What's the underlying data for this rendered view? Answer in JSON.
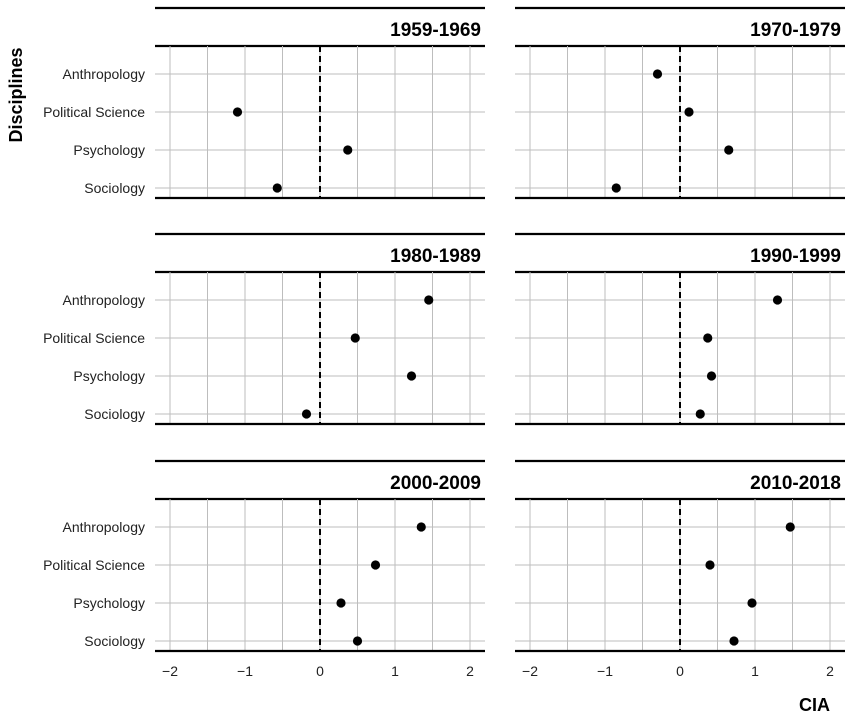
{
  "chart_data": {
    "type": "scatter",
    "xlabel": "CIA",
    "ylabel": "Disciplines",
    "xlim": [
      -2.2,
      2.2
    ],
    "x_ticks": [
      -2,
      -1,
      0,
      1,
      2
    ],
    "x_tick_labels": [
      "−2",
      "−1",
      "0",
      "1",
      "2"
    ],
    "reference_line": 0,
    "grid": true,
    "categories": [
      "Anthropology",
      "Political Science",
      "Psychology",
      "Sociology"
    ],
    "panels": [
      {
        "title": "1959-1969",
        "values": [
          null,
          -1.1,
          0.37,
          -0.57
        ]
      },
      {
        "title": "1970-1979",
        "values": [
          -0.3,
          0.12,
          0.65,
          -0.85
        ]
      },
      {
        "title": "1980-1989",
        "values": [
          1.45,
          0.47,
          1.22,
          -0.18
        ]
      },
      {
        "title": "1990-1999",
        "values": [
          1.3,
          0.37,
          0.42,
          0.27
        ]
      },
      {
        "title": "2000-2009",
        "values": [
          1.35,
          0.74,
          0.28,
          0.5
        ]
      },
      {
        "title": "2010-2018",
        "values": [
          1.47,
          0.4,
          0.96,
          0.72
        ]
      }
    ]
  }
}
